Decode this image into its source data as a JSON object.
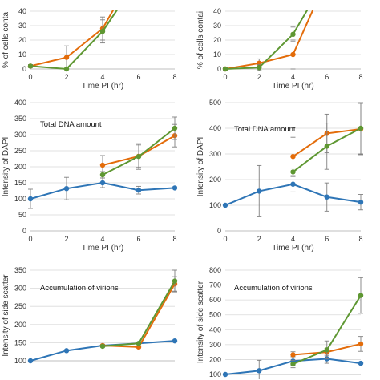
{
  "chart_data": [
    {
      "type": "line",
      "title": "",
      "annotation": "",
      "xlabel": "Time PI (hr)",
      "ylabel": "% of cells conta",
      "xlim": [
        0,
        8
      ],
      "ylim": [
        0,
        40
      ],
      "xticks": [
        0,
        2,
        4,
        6,
        8
      ],
      "yticks": [
        0,
        10,
        20,
        30,
        40
      ],
      "grid": true,
      "series": [
        {
          "color": "#E36C0A",
          "x": [
            0,
            2,
            4,
            5.1
          ],
          "y": [
            2,
            8,
            28,
            52
          ],
          "err": [
            1,
            8,
            8,
            0
          ]
        },
        {
          "color": "#5E9732",
          "x": [
            0,
            2,
            4,
            5.4
          ],
          "y": [
            2,
            0,
            26,
            52
          ],
          "err": [
            1,
            0,
            8,
            0
          ]
        }
      ]
    },
    {
      "type": "line",
      "title": "",
      "annotation": "",
      "xlabel": "Time PI (hr)",
      "ylabel": "% of cells contai",
      "xlim": [
        0,
        8
      ],
      "ylim": [
        0,
        40
      ],
      "xticks": [
        0,
        2,
        4,
        6,
        8
      ],
      "yticks": [
        0,
        10,
        20,
        30,
        40
      ],
      "grid": true,
      "series": [
        {
          "color": "#E36C0A",
          "x": [
            0,
            2,
            4,
            5.6
          ],
          "y": [
            0,
            4,
            10,
            52
          ],
          "err": [
            1,
            3,
            10,
            0
          ]
        },
        {
          "color": "#5E9732",
          "x": [
            0,
            2,
            4,
            5.4
          ],
          "y": [
            0,
            1,
            24,
            52
          ],
          "err": [
            1,
            2,
            5,
            0
          ]
        },
        {
          "color": "#E36C0A",
          "x": [
            8
          ],
          "y": [
            44
          ],
          "err": [
            3
          ]
        }
      ]
    },
    {
      "type": "line",
      "title": "",
      "annotation": "Total DNA amount",
      "xlabel": "Time PI (hr)",
      "ylabel": "Intensity of DAPI",
      "xlim": [
        0,
        8
      ],
      "ylim": [
        0,
        400
      ],
      "xticks": [
        0,
        2,
        4,
        6,
        8
      ],
      "yticks": [
        0,
        50,
        100,
        150,
        200,
        250,
        300,
        350,
        400
      ],
      "grid": true,
      "series": [
        {
          "color": "#2E75B6",
          "x": [
            0,
            2,
            4,
            6,
            8
          ],
          "y": [
            100,
            132,
            150,
            127,
            134
          ],
          "err": [
            30,
            35,
            15,
            12,
            0
          ]
        },
        {
          "color": "#E36C0A",
          "x": [
            4,
            6,
            8
          ],
          "y": [
            205,
            233,
            297
          ],
          "err": [
            30,
            35,
            35
          ]
        },
        {
          "color": "#5E9732",
          "x": [
            4,
            6,
            8
          ],
          "y": [
            175,
            232,
            320
          ],
          "err": [
            10,
            40,
            35
          ]
        }
      ]
    },
    {
      "type": "line",
      "title": "",
      "annotation": "Total DNA amount",
      "xlabel": "Time PI (hr)",
      "ylabel": "Intensity of DAPI",
      "xlim": [
        0,
        8
      ],
      "ylim": [
        0,
        500
      ],
      "xticks": [
        0,
        2,
        4,
        6,
        8
      ],
      "yticks": [
        0,
        100,
        200,
        300,
        400,
        500
      ],
      "grid": true,
      "series": [
        {
          "color": "#2E75B6",
          "x": [
            0,
            2,
            4,
            6,
            8
          ],
          "y": [
            100,
            155,
            182,
            132,
            112
          ],
          "err": [
            0,
            100,
            30,
            55,
            30
          ]
        },
        {
          "color": "#E36C0A",
          "x": [
            4,
            6,
            8
          ],
          "y": [
            290,
            380,
            397
          ],
          "err": [
            75,
            75,
            100
          ]
        },
        {
          "color": "#5E9732",
          "x": [
            4,
            6,
            8
          ],
          "y": [
            230,
            330,
            400
          ],
          "err": [
            15,
            90,
            100
          ]
        }
      ]
    },
    {
      "type": "line",
      "title": "",
      "annotation": "Accumulation of virions",
      "xlabel": "",
      "ylabel": "Intensity of side scatter",
      "xlim": [
        0,
        8
      ],
      "ylim": [
        100,
        350
      ],
      "xticks": [],
      "yticks": [
        100,
        150,
        200,
        250,
        300,
        350
      ],
      "grid": true,
      "series": [
        {
          "color": "#2E75B6",
          "x": [
            0,
            2,
            4,
            6,
            8
          ],
          "y": [
            100,
            128,
            142,
            148,
            155
          ],
          "err": [
            0,
            0,
            0,
            0,
            0
          ]
        },
        {
          "color": "#E36C0A",
          "x": [
            4,
            6,
            8
          ],
          "y": [
            142,
            138,
            312
          ],
          "err": [
            3,
            3,
            20
          ]
        },
        {
          "color": "#5E9732",
          "x": [
            4,
            6,
            8
          ],
          "y": [
            140,
            148,
            320
          ],
          "err": [
            3,
            3,
            30
          ]
        }
      ]
    },
    {
      "type": "line",
      "title": "",
      "annotation": "Accumulation of virions",
      "xlabel": "",
      "ylabel": "Intensity of side scatter",
      "xlim": [
        0,
        8
      ],
      "ylim": [
        100,
        800
      ],
      "xticks": [],
      "yticks": [
        100,
        200,
        300,
        400,
        500,
        600,
        700,
        800
      ],
      "grid": true,
      "series": [
        {
          "color": "#2E75B6",
          "x": [
            0,
            2,
            4,
            6,
            8
          ],
          "y": [
            100,
            125,
            190,
            205,
            175
          ],
          "err": [
            0,
            70,
            30,
            30,
            0
          ]
        },
        {
          "color": "#E36C0A",
          "x": [
            4,
            6,
            8
          ],
          "y": [
            232,
            250,
            305
          ],
          "err": [
            20,
            25,
            50
          ]
        },
        {
          "color": "#5E9732",
          "x": [
            4,
            6,
            8
          ],
          "y": [
            170,
            265,
            630
          ],
          "err": [
            25,
            60,
            120
          ]
        }
      ]
    }
  ]
}
